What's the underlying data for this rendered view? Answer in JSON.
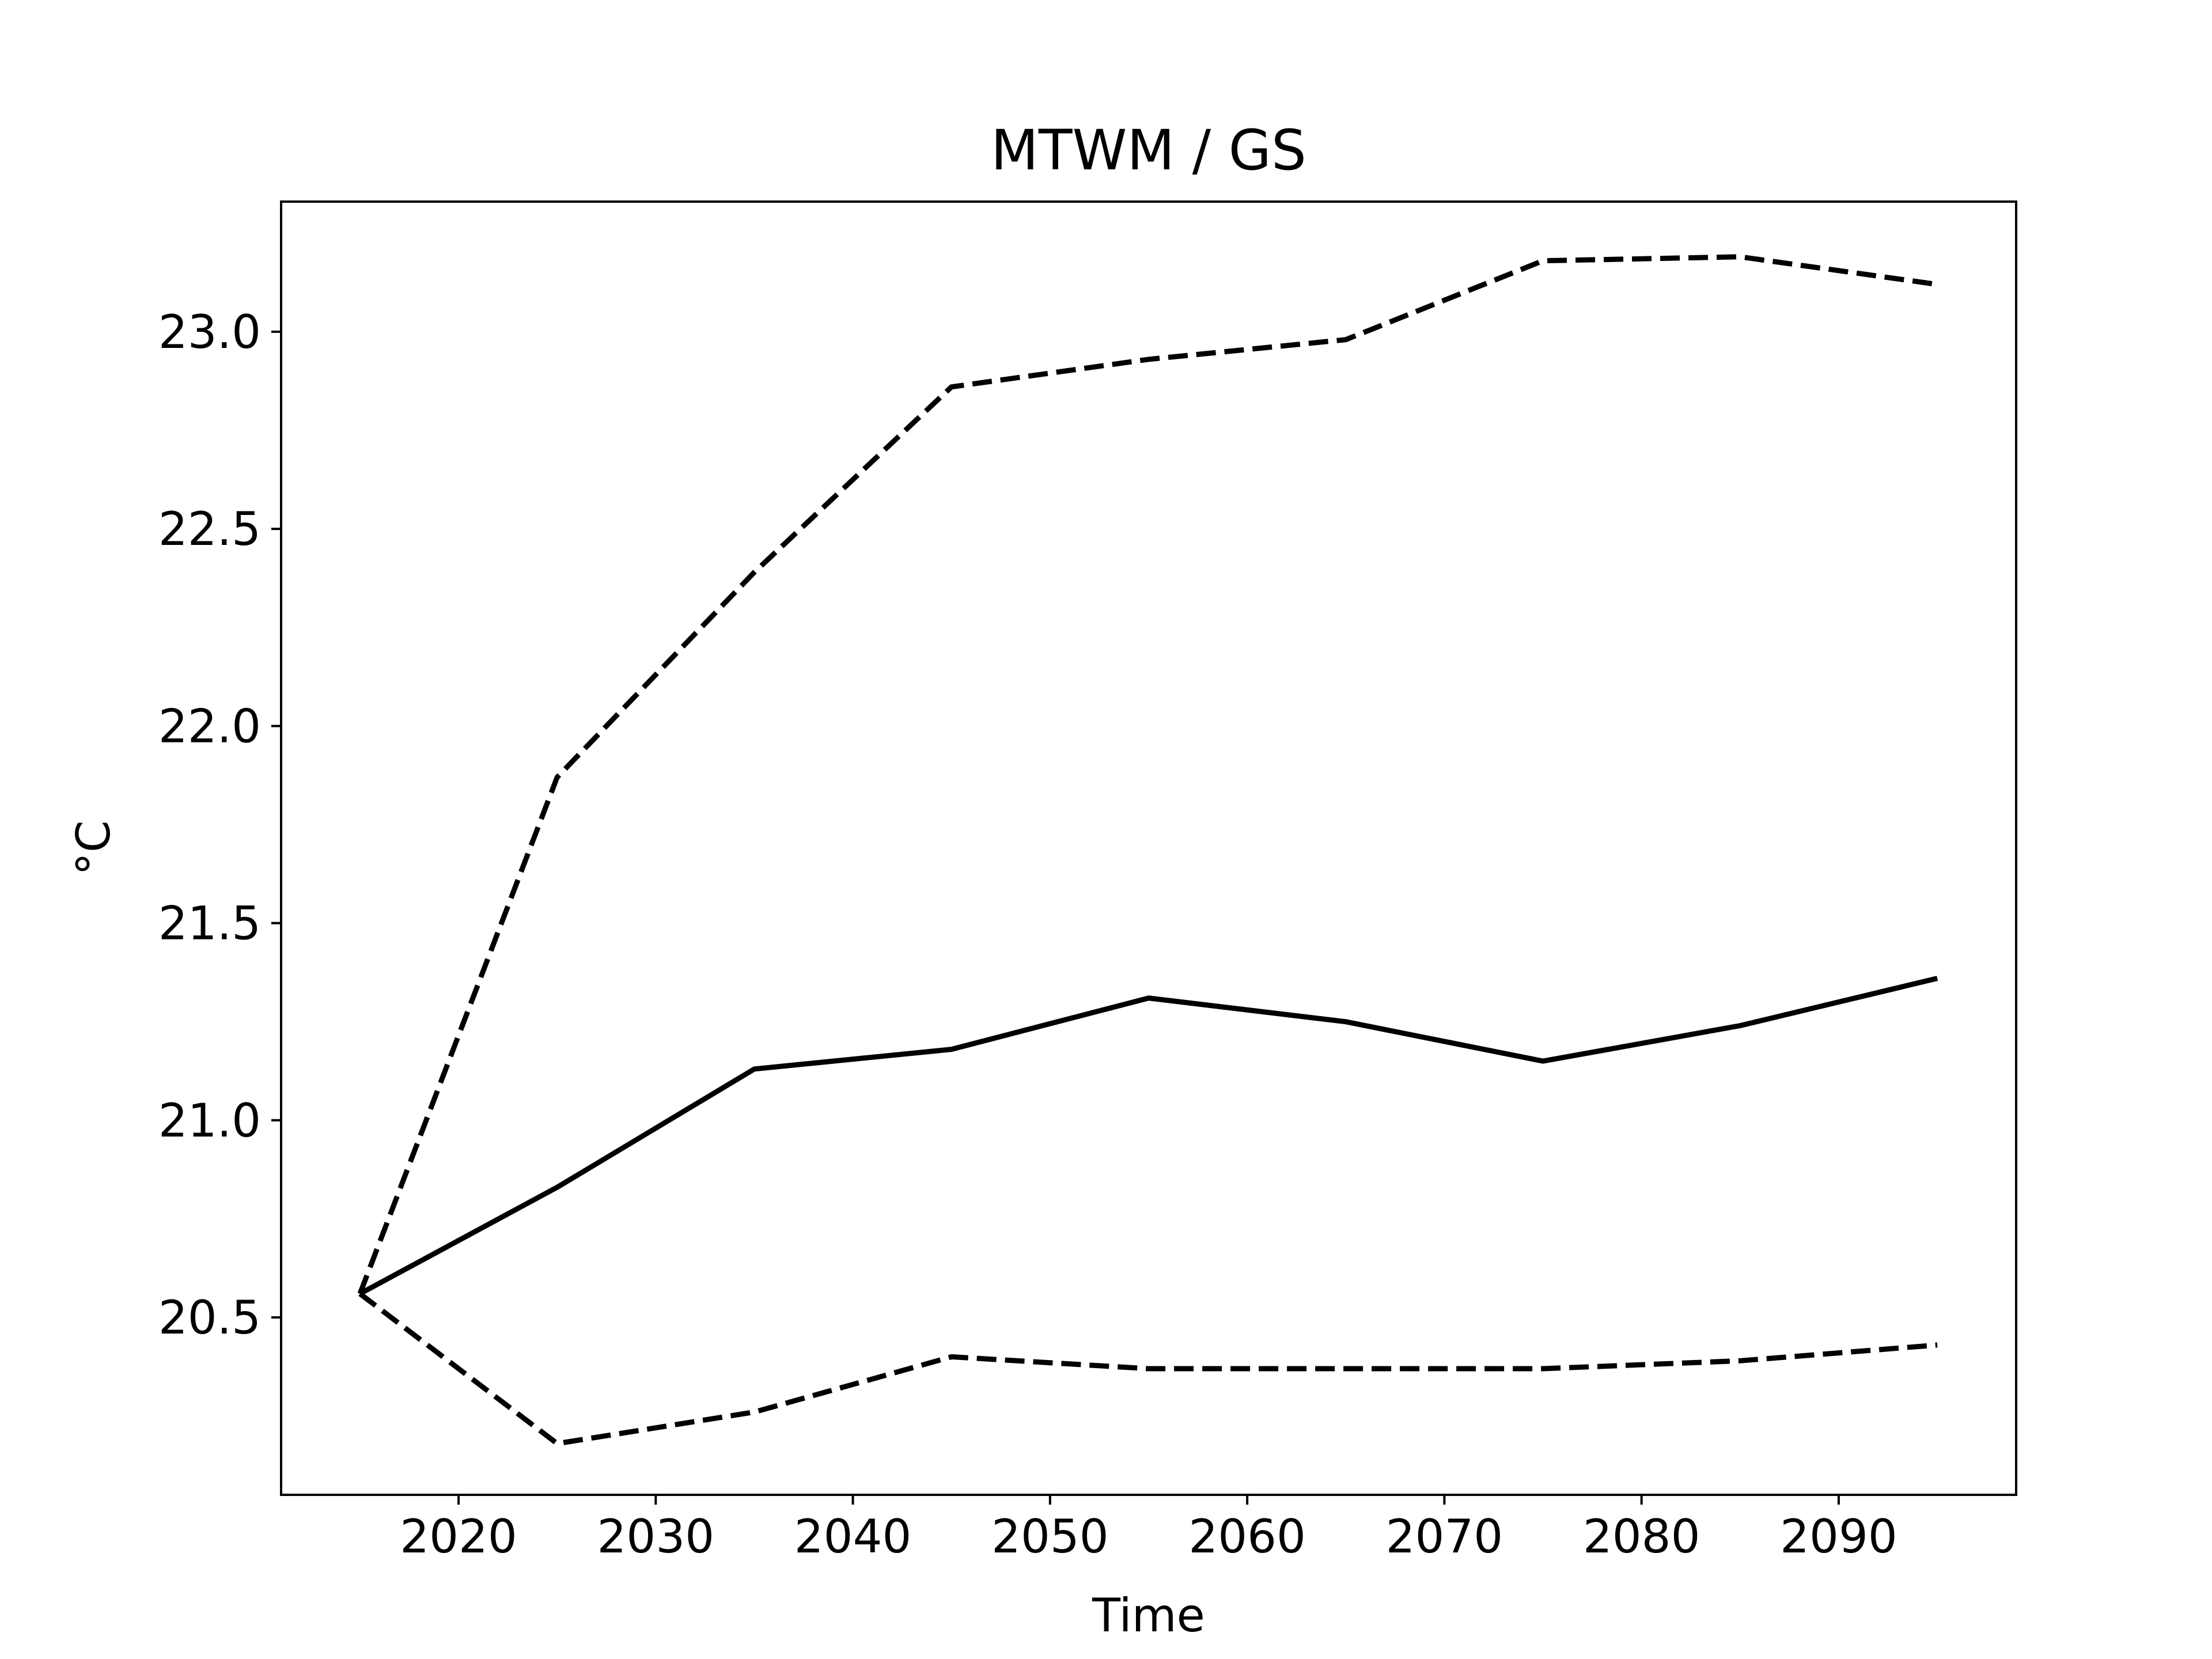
{
  "chart_data": {
    "type": "line",
    "title": "MTWM / GS",
    "xlabel": "Time",
    "ylabel": "°C",
    "xlim": [
      2011,
      2099
    ],
    "ylim": [
      20.05,
      23.33
    ],
    "x": [
      2015,
      2025,
      2035,
      2045,
      2055,
      2065,
      2075,
      2085,
      2095
    ],
    "xticks": [
      2020,
      2030,
      2040,
      2050,
      2060,
      2070,
      2080,
      2090
    ],
    "yticks": [
      20.5,
      21.0,
      21.5,
      22.0,
      22.5,
      23.0
    ],
    "ytick_labels": [
      "20.5",
      "21.0",
      "21.5",
      "22.0",
      "22.5",
      "23.0"
    ],
    "grid": false,
    "line_color": "#000000",
    "series": [
      {
        "style": "dashed",
        "values": [
          20.56,
          21.87,
          22.39,
          22.86,
          22.93,
          22.98,
          23.18,
          23.19,
          23.12
        ]
      },
      {
        "style": "solid",
        "values": [
          20.56,
          20.83,
          21.13,
          21.18,
          21.31,
          21.25,
          21.15,
          21.24,
          21.36
        ]
      },
      {
        "style": "dashed",
        "values": [
          20.56,
          20.18,
          20.26,
          20.4,
          20.37,
          20.37,
          20.37,
          20.39,
          20.43
        ]
      }
    ]
  }
}
